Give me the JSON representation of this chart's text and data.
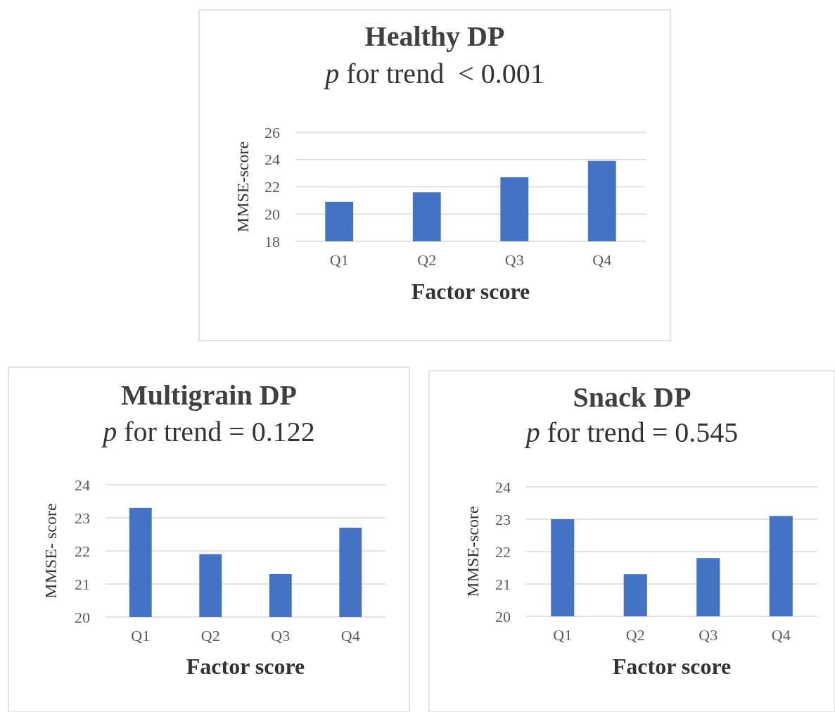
{
  "chart_data": [
    {
      "type": "bar",
      "title": "Healthy DP",
      "subtitle": "p for trend  < 0.001",
      "xlabel": "Factor score",
      "ylabel": "MMSE-score",
      "categories": [
        "Q1",
        "Q2",
        "Q3",
        "Q4"
      ],
      "values": [
        20.9,
        21.6,
        22.7,
        23.9
      ],
      "color": "#4472c4",
      "ylim": [
        18,
        26
      ],
      "yticks": [
        18,
        20,
        22,
        24,
        26
      ],
      "grid": "y"
    },
    {
      "type": "bar",
      "title": "Multigrain DP",
      "subtitle": "p for trend = 0.122",
      "xlabel": "Factor score",
      "ylabel": "MMSE- score",
      "categories": [
        "Q1",
        "Q2",
        "Q3",
        "Q4"
      ],
      "values": [
        23.3,
        21.9,
        21.3,
        22.7
      ],
      "color": "#4472c4",
      "ylim": [
        20,
        24
      ],
      "yticks": [
        20,
        21,
        22,
        23,
        24
      ],
      "grid": "y"
    },
    {
      "type": "bar",
      "title": "Snack DP",
      "subtitle": "p for trend = 0.545",
      "xlabel": "Factor score",
      "ylabel": "MMSE-score",
      "categories": [
        "Q1",
        "Q2",
        "Q3",
        "Q4"
      ],
      "values": [
        23.0,
        21.3,
        21.8,
        23.1
      ],
      "color": "#4472c4",
      "ylim": [
        20,
        24
      ],
      "yticks": [
        20,
        21,
        22,
        23,
        24
      ],
      "grid": "y"
    }
  ]
}
